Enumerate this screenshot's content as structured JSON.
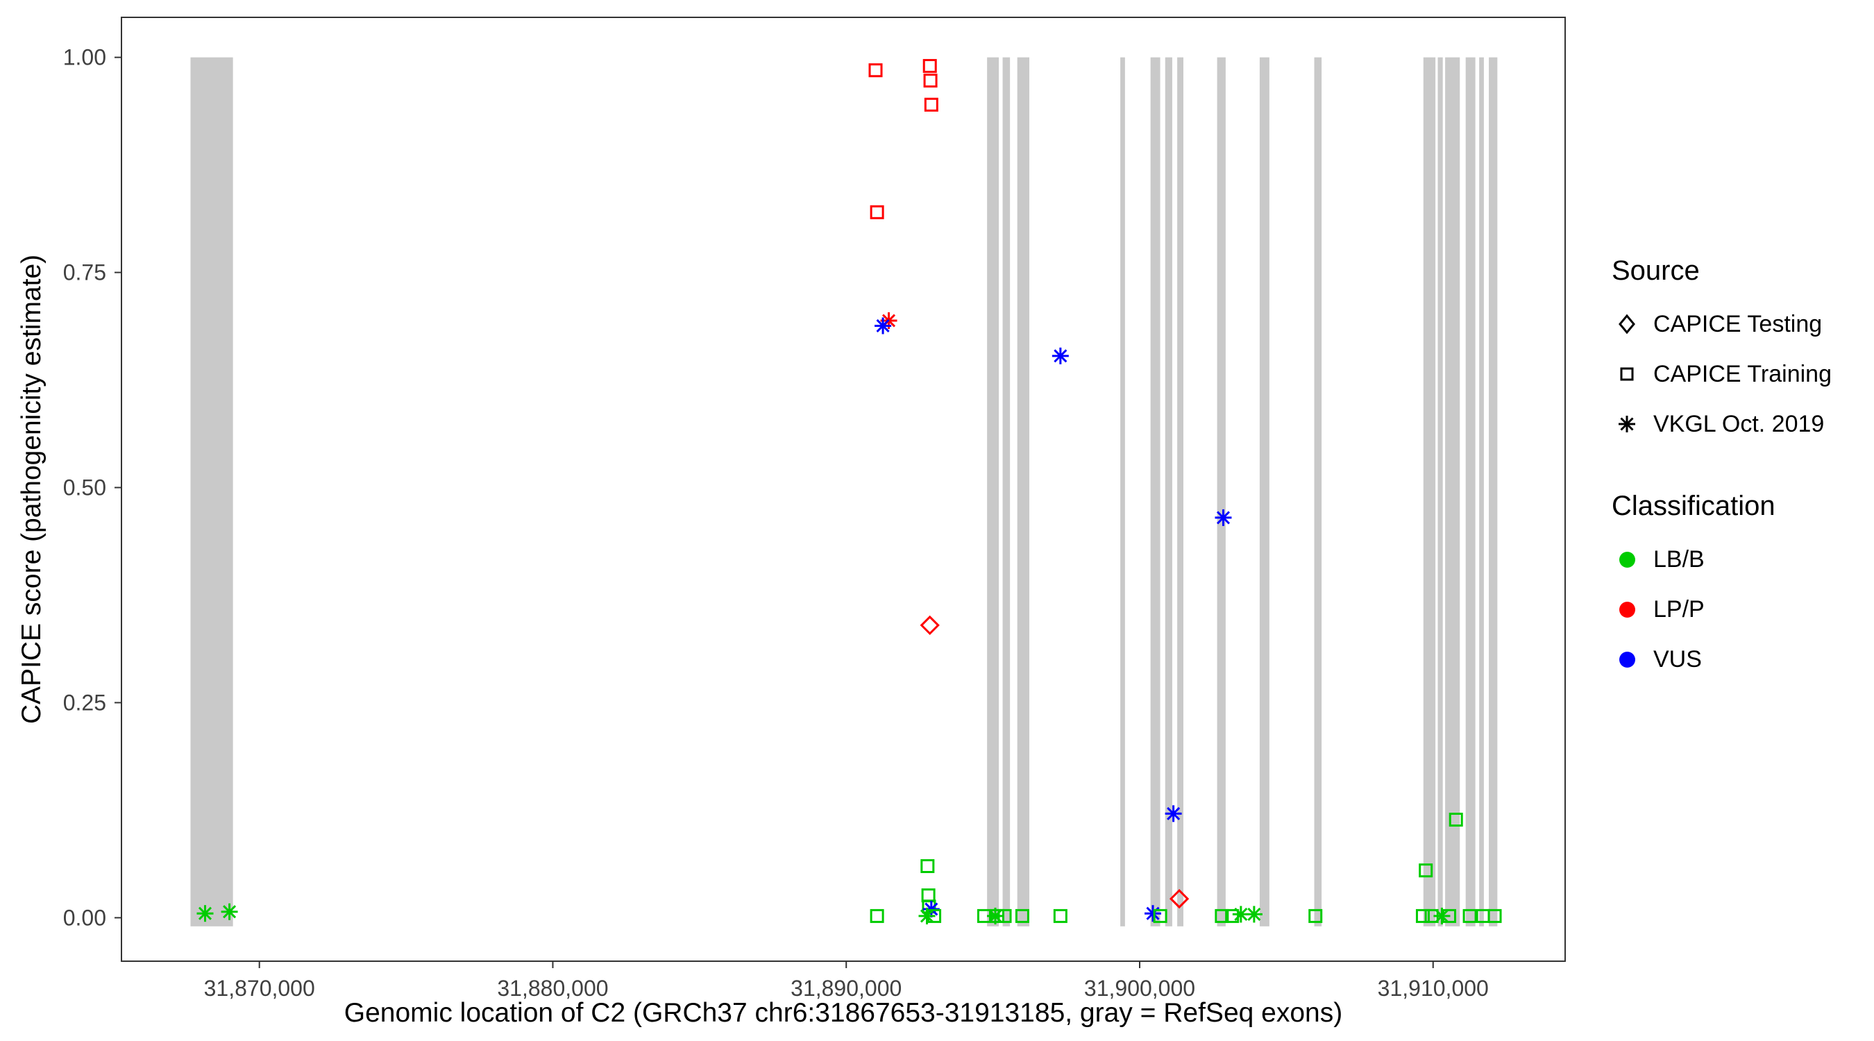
{
  "legend": {
    "source": {
      "title": "Source",
      "items": [
        "CAPICE Testing",
        "CAPICE Training",
        "VKGL Oct. 2019"
      ]
    },
    "classification": {
      "title": "Classification",
      "items": [
        "LB/B",
        "LP/P",
        "VUS"
      ]
    }
  },
  "chart_data": {
    "type": "scatter",
    "xlabel": "Genomic location of C2 (GRCh37 chr6:31867653-31913185, gray = RefSeq exons)",
    "ylabel": "CAPICE score (pathogenicity estimate)",
    "xlim": [
      31865300,
      31914500
    ],
    "ylim": [
      -0.0505,
      1.0465
    ],
    "xtick_values": [
      31870000,
      31880000,
      31890000,
      31900000,
      31910000
    ],
    "xtick_labels": [
      "31,870,000",
      "31,880,000",
      "31,890,000",
      "31,900,000",
      "31,910,000"
    ],
    "ytick_values": [
      0,
      0.25,
      0.5,
      0.75,
      1
    ],
    "ytick_labels": [
      "0.00",
      "0.25",
      "0.50",
      "0.75",
      "1.00"
    ],
    "grid": "off",
    "legend_position": "right",
    "exon_color": "#C9C9C9",
    "colors": {
      "LB/B": "#00CC00",
      "LP/P": "#FF0000",
      "VUS": "#0000FF"
    },
    "symbols": {
      "CAPICE Testing": "diamond",
      "CAPICE Training": "square",
      "VKGL Oct. 2019": "asterisk"
    },
    "exons": [
      [
        31867653,
        31869100
      ],
      [
        31894800,
        31895200
      ],
      [
        31895330,
        31895580
      ],
      [
        31895830,
        31896240
      ],
      [
        31899340,
        31899500
      ],
      [
        31900370,
        31900700
      ],
      [
        31900870,
        31901110
      ],
      [
        31901280,
        31901490
      ],
      [
        31902640,
        31902930
      ],
      [
        31904090,
        31904420
      ],
      [
        31905950,
        31906200
      ],
      [
        31909670,
        31910080
      ],
      [
        31910160,
        31910330
      ],
      [
        31910410,
        31910910
      ],
      [
        31911110,
        31911440
      ],
      [
        31911570,
        31911730
      ],
      [
        31911900,
        31912190
      ]
    ],
    "points": [
      {
        "x": 31868150,
        "y": 0.005,
        "source": "VKGL Oct. 2019",
        "classification": "LB/B"
      },
      {
        "x": 31868980,
        "y": 0.007,
        "source": "VKGL Oct. 2019",
        "classification": "LB/B"
      },
      {
        "x": 31891000,
        "y": 0.985,
        "source": "CAPICE Training",
        "classification": "LP/P"
      },
      {
        "x": 31892850,
        "y": 0.99,
        "source": "CAPICE Training",
        "classification": "LP/P"
      },
      {
        "x": 31892870,
        "y": 0.973,
        "source": "CAPICE Training",
        "classification": "LP/P"
      },
      {
        "x": 31892900,
        "y": 0.945,
        "source": "CAPICE Training",
        "classification": "LP/P"
      },
      {
        "x": 31891050,
        "y": 0.82,
        "source": "CAPICE Training",
        "classification": "LP/P"
      },
      {
        "x": 31891450,
        "y": 0.694,
        "source": "VKGL Oct. 2019",
        "classification": "LP/P"
      },
      {
        "x": 31891250,
        "y": 0.688,
        "source": "VKGL Oct. 2019",
        "classification": "VUS"
      },
      {
        "x": 31897300,
        "y": 0.653,
        "source": "VKGL Oct. 2019",
        "classification": "VUS"
      },
      {
        "x": 31902850,
        "y": 0.465,
        "source": "VKGL Oct. 2019",
        "classification": "VUS"
      },
      {
        "x": 31892850,
        "y": 0.34,
        "source": "CAPICE Testing",
        "classification": "LP/P"
      },
      {
        "x": 31901150,
        "y": 0.121,
        "source": "VKGL Oct. 2019",
        "classification": "VUS"
      },
      {
        "x": 31901350,
        "y": 0.022,
        "source": "CAPICE Testing",
        "classification": "LP/P"
      },
      {
        "x": 31892770,
        "y": 0.06,
        "source": "CAPICE Training",
        "classification": "LB/B"
      },
      {
        "x": 31892800,
        "y": 0.026,
        "source": "CAPICE Training",
        "classification": "LB/B"
      },
      {
        "x": 31892820,
        "y": 0.013,
        "source": "CAPICE Training",
        "classification": "LB/B"
      },
      {
        "x": 31892900,
        "y": 0.01,
        "source": "VKGL Oct. 2019",
        "classification": "VUS"
      },
      {
        "x": 31892750,
        "y": 0.002,
        "source": "VKGL Oct. 2019",
        "classification": "LB/B"
      },
      {
        "x": 31891050,
        "y": 0.002,
        "source": "CAPICE Training",
        "classification": "LB/B"
      },
      {
        "x": 31893000,
        "y": 0.002,
        "source": "CAPICE Training",
        "classification": "LB/B"
      },
      {
        "x": 31894700,
        "y": 0.002,
        "source": "CAPICE Training",
        "classification": "LB/B"
      },
      {
        "x": 31895080,
        "y": 0.002,
        "source": "VKGL Oct. 2019",
        "classification": "LB/B"
      },
      {
        "x": 31895150,
        "y": 0.002,
        "source": "CAPICE Training",
        "classification": "LB/B"
      },
      {
        "x": 31895400,
        "y": 0.002,
        "source": "CAPICE Training",
        "classification": "LB/B"
      },
      {
        "x": 31896000,
        "y": 0.002,
        "source": "CAPICE Training",
        "classification": "LB/B"
      },
      {
        "x": 31897300,
        "y": 0.002,
        "source": "CAPICE Training",
        "classification": "LB/B"
      },
      {
        "x": 31900450,
        "y": 0.005,
        "source": "VKGL Oct. 2019",
        "classification": "VUS"
      },
      {
        "x": 31900700,
        "y": 0.002,
        "source": "CAPICE Training",
        "classification": "LB/B"
      },
      {
        "x": 31902800,
        "y": 0.002,
        "source": "CAPICE Training",
        "classification": "LB/B"
      },
      {
        "x": 31903150,
        "y": 0.002,
        "source": "CAPICE Training",
        "classification": "LB/B"
      },
      {
        "x": 31903450,
        "y": 0.004,
        "source": "VKGL Oct. 2019",
        "classification": "LB/B"
      },
      {
        "x": 31903900,
        "y": 0.004,
        "source": "VKGL Oct. 2019",
        "classification": "LB/B"
      },
      {
        "x": 31905990,
        "y": 0.002,
        "source": "CAPICE Training",
        "classification": "LB/B"
      },
      {
        "x": 31909750,
        "y": 0.055,
        "source": "CAPICE Training",
        "classification": "LB/B"
      },
      {
        "x": 31910780,
        "y": 0.114,
        "source": "CAPICE Training",
        "classification": "LB/B"
      },
      {
        "x": 31909650,
        "y": 0.002,
        "source": "CAPICE Training",
        "classification": "LB/B"
      },
      {
        "x": 31909950,
        "y": 0.002,
        "source": "CAPICE Training",
        "classification": "LB/B"
      },
      {
        "x": 31910300,
        "y": 0.002,
        "source": "VKGL Oct. 2019",
        "classification": "LB/B"
      },
      {
        "x": 31910550,
        "y": 0.002,
        "source": "CAPICE Training",
        "classification": "LB/B"
      },
      {
        "x": 31911250,
        "y": 0.002,
        "source": "CAPICE Training",
        "classification": "LB/B"
      },
      {
        "x": 31911700,
        "y": 0.002,
        "source": "CAPICE Training",
        "classification": "LB/B"
      },
      {
        "x": 31912100,
        "y": 0.002,
        "source": "CAPICE Training",
        "classification": "LB/B"
      }
    ]
  }
}
